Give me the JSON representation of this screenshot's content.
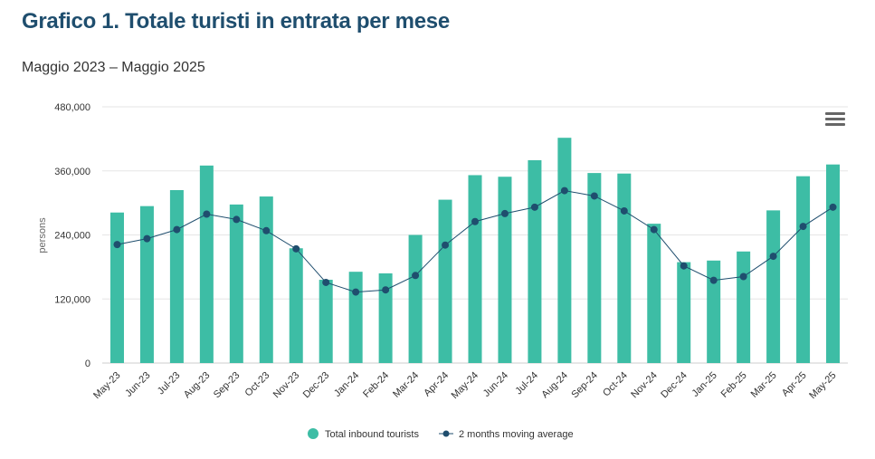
{
  "header": {
    "title": "Grafico 1. Totale turisti in entrata per mese",
    "subtitle": "Maggio 2023 – Maggio 2025"
  },
  "icons": {
    "menu": "hamburger-menu-icon"
  },
  "colors": {
    "bar": "#3dbda5",
    "line": "#1f4e6e",
    "title": "#1f4e6e"
  },
  "chart_data": {
    "type": "bar",
    "ylabel": "persons",
    "ylim": [
      0,
      480000
    ],
    "yticks": [
      0,
      120000,
      240000,
      360000,
      480000
    ],
    "ytick_labels": [
      "0",
      "120,000",
      "240,000",
      "360,000",
      "480,000"
    ],
    "grid": true,
    "legend_position": "bottom",
    "categories": [
      "May-23",
      "Jun-23",
      "Jul-23",
      "Aug-23",
      "Sep-23",
      "Oct-23",
      "Nov-23",
      "Dec-23",
      "Jan-24",
      "Feb-24",
      "Mar-24",
      "Apr-24",
      "May-24",
      "Jun-24",
      "Jul-24",
      "Aug-24",
      "Sep-24",
      "Oct-24",
      "Nov-24",
      "Dec-24",
      "Jan-25",
      "Feb-25",
      "Mar-25",
      "Apr-25",
      "May-25"
    ],
    "series": [
      {
        "name": "Total inbound tourists",
        "type": "bar",
        "values": [
          282000,
          294000,
          324000,
          370000,
          297000,
          312000,
          215000,
          156000,
          171000,
          168000,
          240000,
          306000,
          352000,
          349000,
          380000,
          422000,
          356000,
          355000,
          261000,
          189000,
          192000,
          209000,
          286000,
          350000,
          372000
        ]
      },
      {
        "name": "2 months moving average",
        "type": "line",
        "values": [
          222000,
          233000,
          250000,
          279000,
          269000,
          248000,
          214000,
          151000,
          133000,
          137000,
          164000,
          221000,
          265000,
          280000,
          292000,
          323000,
          313000,
          285000,
          250000,
          182000,
          155000,
          162000,
          200000,
          256000,
          292000
        ]
      }
    ]
  }
}
